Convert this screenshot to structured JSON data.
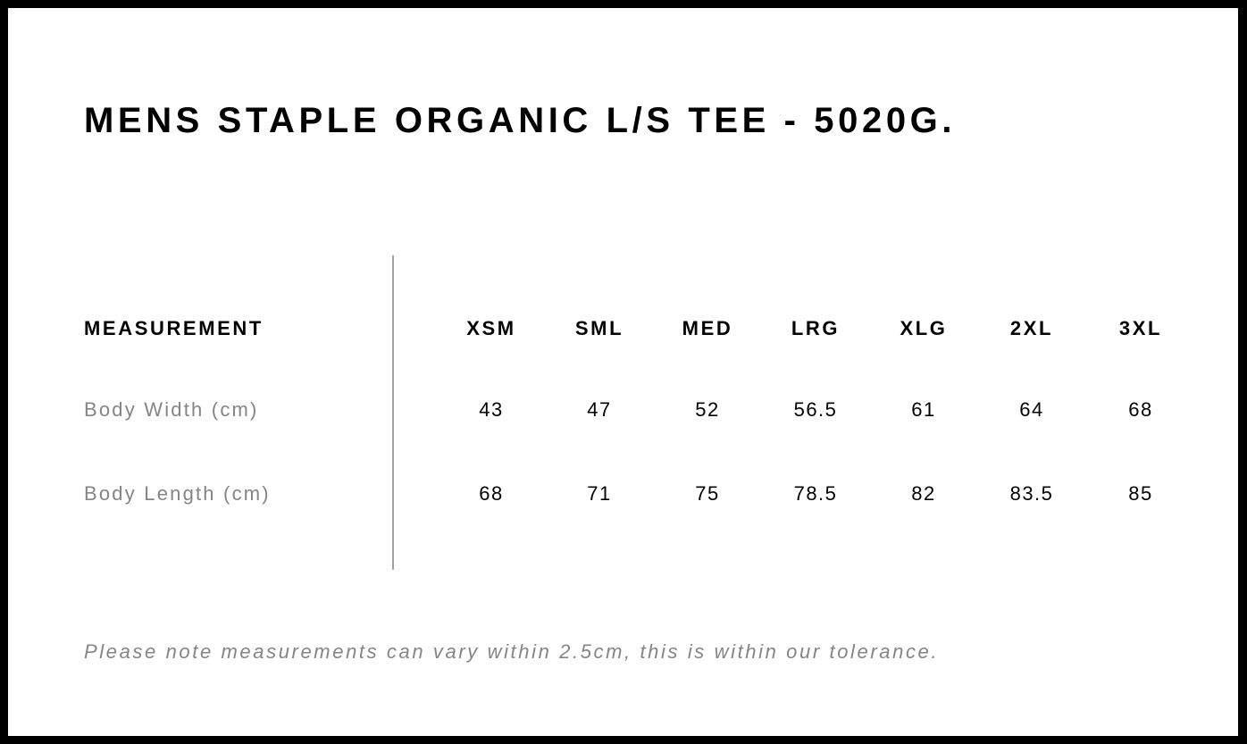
{
  "title": "MENS STAPLE ORGANIC L/S TEE - 5020G.",
  "table": {
    "header_label": "MEASUREMENT",
    "sizes": [
      "XSM",
      "SML",
      "MED",
      "LRG",
      "XLG",
      "2XL",
      "3XL"
    ],
    "rows": [
      {
        "label": "Body Width (cm)",
        "values": [
          "43",
          "47",
          "52",
          "56.5",
          "61",
          "64",
          "68"
        ]
      },
      {
        "label": "Body Length (cm)",
        "values": [
          "68",
          "71",
          "75",
          "78.5",
          "82",
          "83.5",
          "85"
        ]
      }
    ]
  },
  "note": "Please note measurements can vary within 2.5cm, this is within our tolerance.",
  "colors": {
    "frame": "#000000",
    "label_gray": "#858585",
    "divider": "#a0a0a0"
  }
}
